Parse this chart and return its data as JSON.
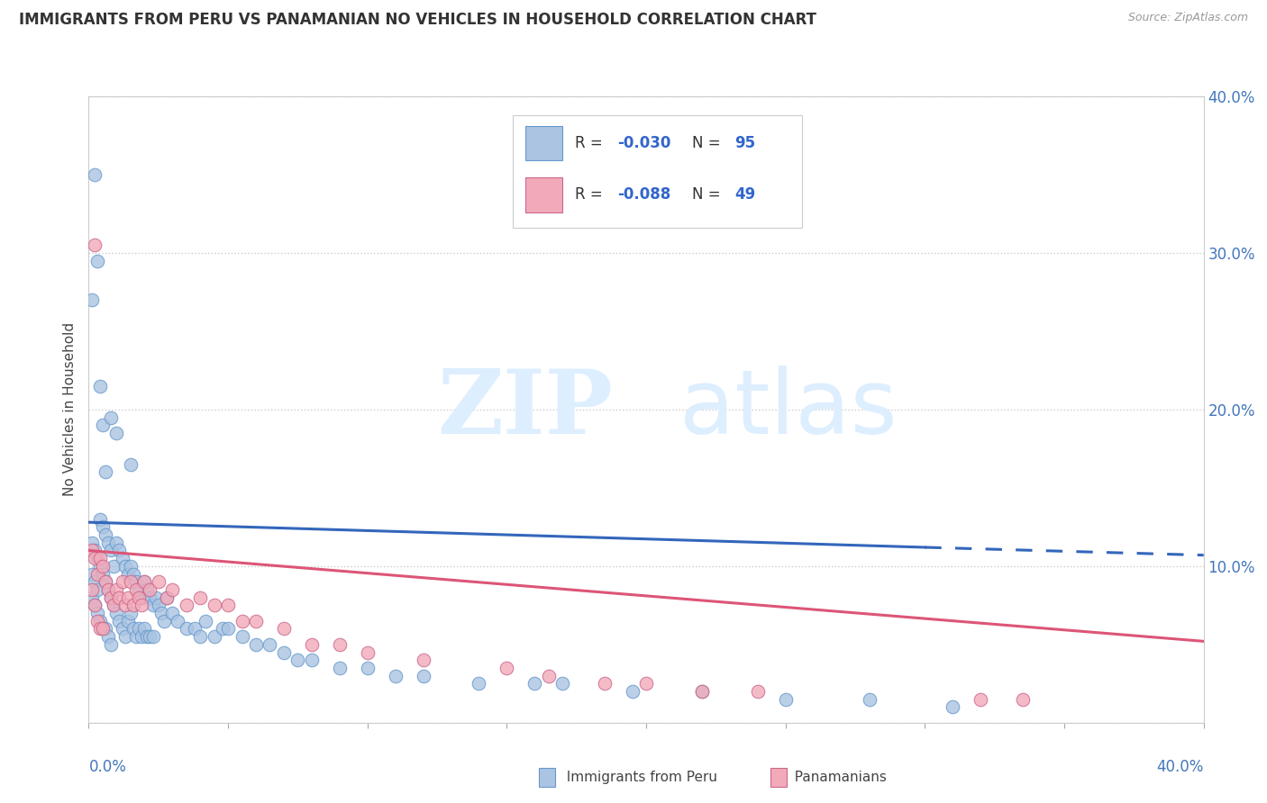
{
  "title": "IMMIGRANTS FROM PERU VS PANAMANIAN NO VEHICLES IN HOUSEHOLD CORRELATION CHART",
  "source": "Source: ZipAtlas.com",
  "ylabel": "No Vehicles in Household",
  "legend_blue": "Immigrants from Peru",
  "legend_pink": "Panamanians",
  "blue_R": -0.03,
  "blue_N": 95,
  "pink_R": -0.088,
  "pink_N": 49,
  "blue_color": "#aac4e2",
  "pink_color": "#f2aaba",
  "blue_edge": "#6699cc",
  "pink_edge": "#cc6688",
  "trend_blue": "#3366bb",
  "trend_pink": "#dd5577",
  "xmin": 0.0,
  "xmax": 0.4,
  "ymin": 0.0,
  "ymax": 0.4,
  "blue_scatter_x": [
    0.001,
    0.001,
    0.001,
    0.002,
    0.002,
    0.002,
    0.003,
    0.003,
    0.003,
    0.004,
    0.004,
    0.004,
    0.005,
    0.005,
    0.005,
    0.006,
    0.006,
    0.006,
    0.007,
    0.007,
    0.007,
    0.008,
    0.008,
    0.008,
    0.009,
    0.009,
    0.01,
    0.01,
    0.011,
    0.011,
    0.012,
    0.012,
    0.013,
    0.013,
    0.014,
    0.014,
    0.015,
    0.015,
    0.016,
    0.016,
    0.017,
    0.017,
    0.018,
    0.018,
    0.019,
    0.019,
    0.02,
    0.02,
    0.021,
    0.021,
    0.022,
    0.022,
    0.023,
    0.023,
    0.024,
    0.025,
    0.026,
    0.027,
    0.028,
    0.03,
    0.032,
    0.035,
    0.038,
    0.04,
    0.042,
    0.045,
    0.048,
    0.05,
    0.055,
    0.06,
    0.065,
    0.07,
    0.075,
    0.08,
    0.09,
    0.1,
    0.11,
    0.12,
    0.14,
    0.16,
    0.17,
    0.195,
    0.22,
    0.25,
    0.28,
    0.31,
    0.001,
    0.002,
    0.003,
    0.004,
    0.005,
    0.006,
    0.008,
    0.01,
    0.015
  ],
  "blue_scatter_y": [
    0.115,
    0.095,
    0.08,
    0.11,
    0.09,
    0.075,
    0.105,
    0.085,
    0.07,
    0.13,
    0.1,
    0.065,
    0.125,
    0.095,
    0.06,
    0.12,
    0.09,
    0.06,
    0.115,
    0.085,
    0.055,
    0.11,
    0.08,
    0.05,
    0.1,
    0.075,
    0.115,
    0.07,
    0.11,
    0.065,
    0.105,
    0.06,
    0.1,
    0.055,
    0.095,
    0.065,
    0.1,
    0.07,
    0.095,
    0.06,
    0.09,
    0.055,
    0.085,
    0.06,
    0.08,
    0.055,
    0.09,
    0.06,
    0.085,
    0.055,
    0.08,
    0.055,
    0.075,
    0.055,
    0.08,
    0.075,
    0.07,
    0.065,
    0.08,
    0.07,
    0.065,
    0.06,
    0.06,
    0.055,
    0.065,
    0.055,
    0.06,
    0.06,
    0.055,
    0.05,
    0.05,
    0.045,
    0.04,
    0.04,
    0.035,
    0.035,
    0.03,
    0.03,
    0.025,
    0.025,
    0.025,
    0.02,
    0.02,
    0.015,
    0.015,
    0.01,
    0.27,
    0.35,
    0.295,
    0.215,
    0.19,
    0.16,
    0.195,
    0.185,
    0.165
  ],
  "pink_scatter_x": [
    0.001,
    0.001,
    0.002,
    0.002,
    0.003,
    0.003,
    0.004,
    0.004,
    0.005,
    0.005,
    0.006,
    0.007,
    0.008,
    0.009,
    0.01,
    0.011,
    0.012,
    0.013,
    0.014,
    0.015,
    0.016,
    0.017,
    0.018,
    0.019,
    0.02,
    0.022,
    0.025,
    0.028,
    0.03,
    0.035,
    0.04,
    0.045,
    0.05,
    0.055,
    0.06,
    0.07,
    0.08,
    0.09,
    0.1,
    0.12,
    0.15,
    0.165,
    0.185,
    0.2,
    0.22,
    0.24,
    0.32,
    0.335,
    0.002
  ],
  "pink_scatter_y": [
    0.11,
    0.085,
    0.105,
    0.075,
    0.095,
    0.065,
    0.105,
    0.06,
    0.1,
    0.06,
    0.09,
    0.085,
    0.08,
    0.075,
    0.085,
    0.08,
    0.09,
    0.075,
    0.08,
    0.09,
    0.075,
    0.085,
    0.08,
    0.075,
    0.09,
    0.085,
    0.09,
    0.08,
    0.085,
    0.075,
    0.08,
    0.075,
    0.075,
    0.065,
    0.065,
    0.06,
    0.05,
    0.05,
    0.045,
    0.04,
    0.035,
    0.03,
    0.025,
    0.025,
    0.02,
    0.02,
    0.015,
    0.015,
    0.305
  ],
  "blue_trend_x0": 0.0,
  "blue_trend_x_solid_end": 0.3,
  "blue_trend_x_dash_end": 0.4,
  "blue_trend_y0": 0.128,
  "blue_trend_y_solid_end": 0.112,
  "blue_trend_y_dash_end": 0.107,
  "pink_trend_x0": 0.0,
  "pink_trend_x_end": 0.4,
  "pink_trend_y0": 0.11,
  "pink_trend_y_end": 0.052
}
